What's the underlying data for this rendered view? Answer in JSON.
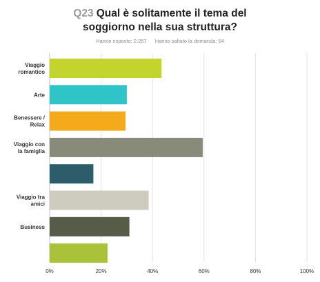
{
  "header": {
    "question_number": "Q23",
    "title_line1": "Qual è solitamente il tema del",
    "title_line2": "soggiorno nella sua struttura?",
    "answered": "Hanno risposto: 2.257",
    "skipped": "Hanno saltato la domanda: 54"
  },
  "chart_data": {
    "type": "bar",
    "orientation": "horizontal",
    "categories": [
      [
        "Viaggio",
        "romantico"
      ],
      [
        "Arte"
      ],
      [
        "Benessere /",
        "Relax"
      ],
      [
        "Viaggio con",
        "la famiglia"
      ],
      [],
      [
        "Viaggio tra",
        "amici"
      ],
      [
        "Business"
      ],
      []
    ],
    "values": [
      43.5,
      30,
      29.5,
      59.5,
      17,
      38.5,
      31,
      22.5
    ],
    "colors": [
      "#c4d42f",
      "#2ec4c8",
      "#f5aa1c",
      "#888b79",
      "#2d5d6b",
      "#cdccbf",
      "#575c49",
      "#a9c23a"
    ],
    "xlim": [
      0,
      100
    ],
    "ticks": [
      "0%",
      "20%",
      "40%",
      "60%",
      "80%",
      "100%"
    ],
    "grid": true
  }
}
